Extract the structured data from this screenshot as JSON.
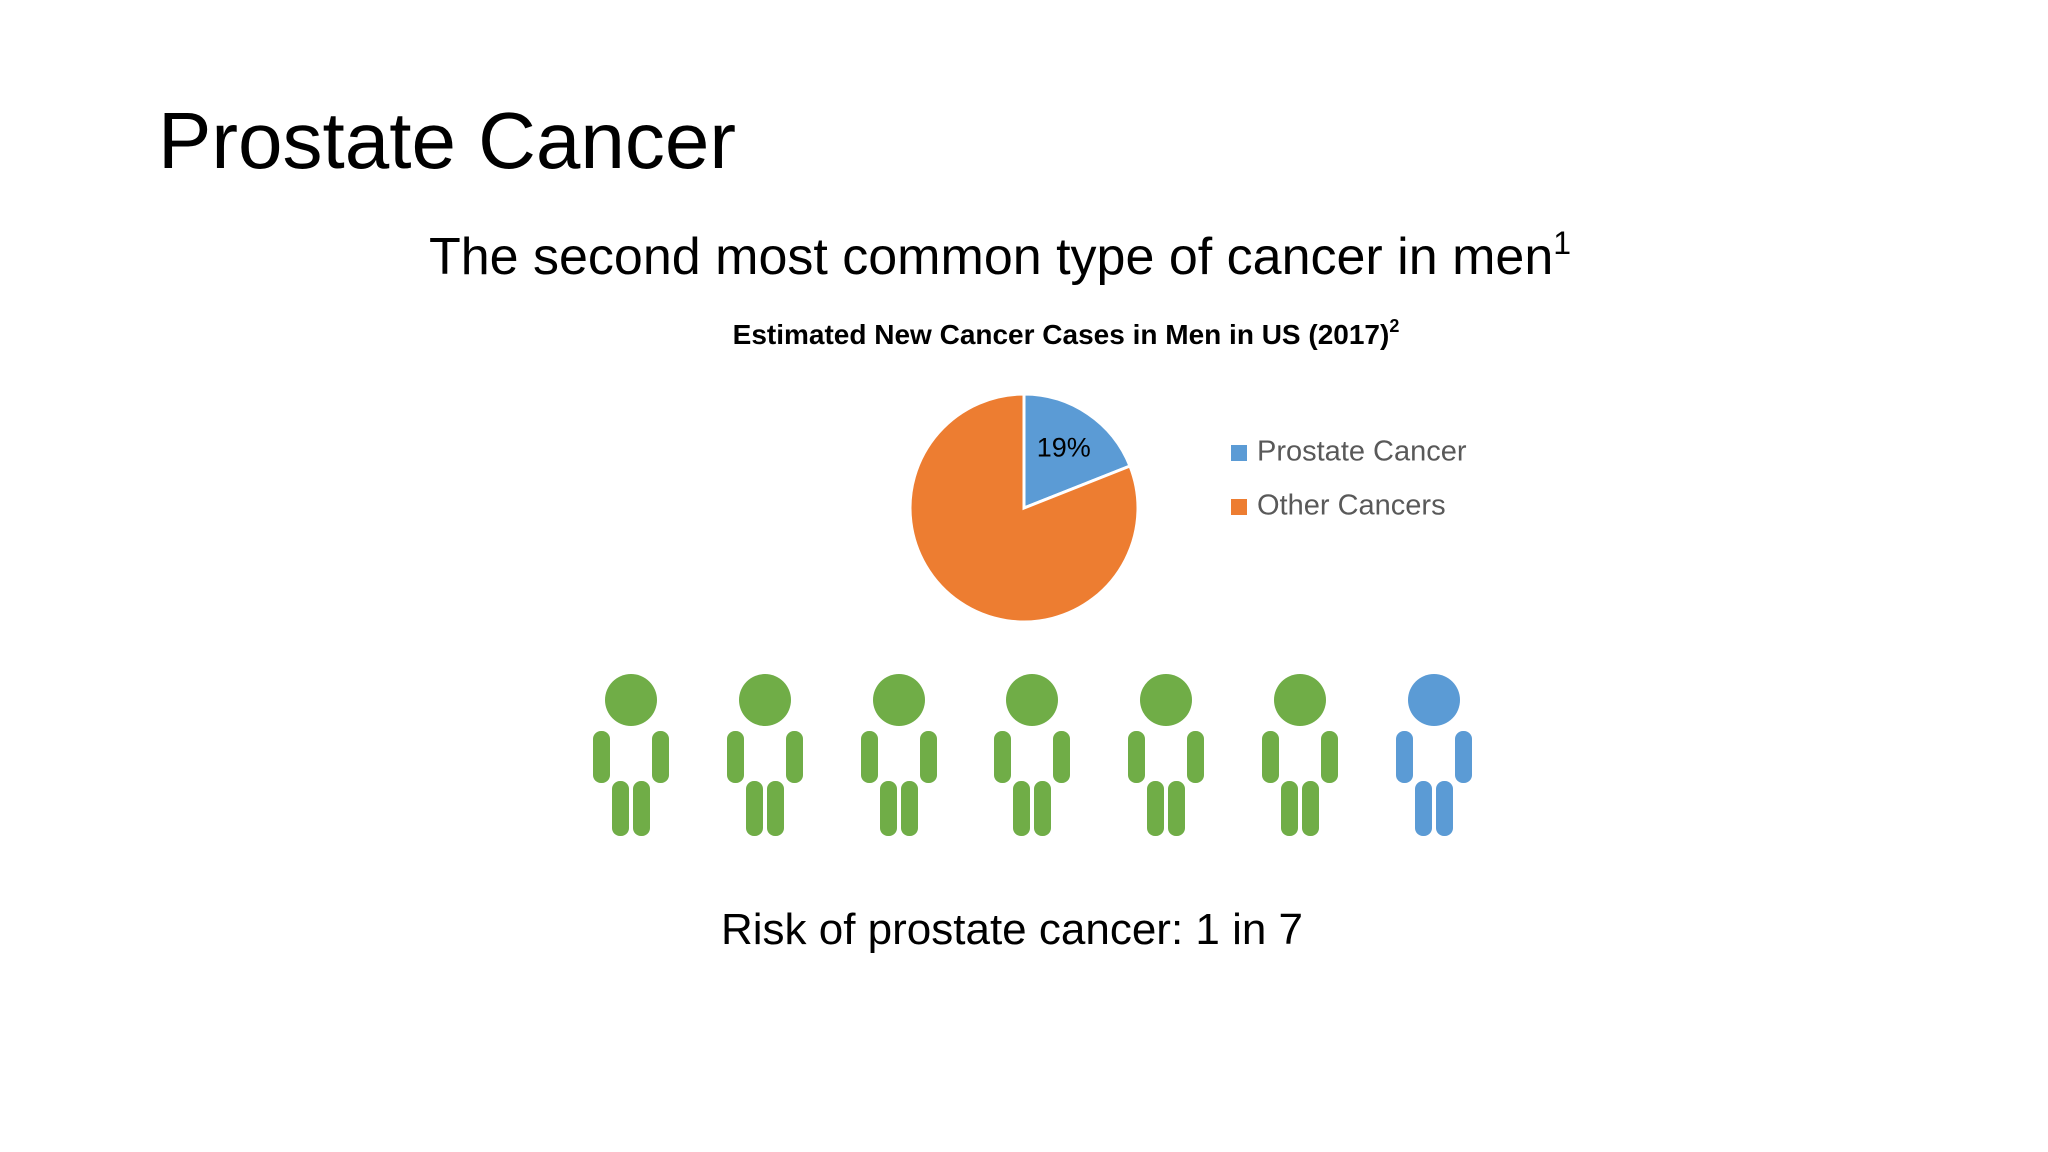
{
  "slide": {
    "title": "Prostate Cancer",
    "subtitle": "The second most common type of cancer in men",
    "subtitle_sup": "1",
    "caption": "Risk of prostate cancer: 1 in 7"
  },
  "chart_data": {
    "type": "pie",
    "title": "Estimated New Cancer Cases in Men in US (2017)",
    "title_sup": "2",
    "categories": [
      "Prostate Cancer",
      "Other Cancers"
    ],
    "values": [
      19,
      81
    ],
    "value_labels": [
      "19%",
      null
    ],
    "colors": [
      "#5b9bd5",
      "#ed7d31"
    ],
    "legend": "right"
  }
}
